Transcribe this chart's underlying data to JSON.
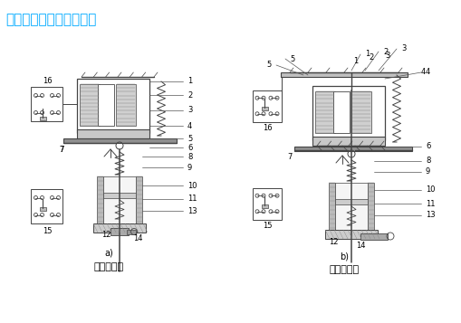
{
  "title_text": "时间继电器结构图如下：",
  "title_color": "#00AAFF",
  "title_fontsize": 11,
  "caption_a": "通电延时型",
  "caption_b": "断电延时型",
  "label_a": "a)",
  "label_b": "b)",
  "bg_color": "#FFFFFF",
  "dc": "#444444",
  "fig_width": 5.1,
  "fig_height": 3.57,
  "dpi": 100
}
